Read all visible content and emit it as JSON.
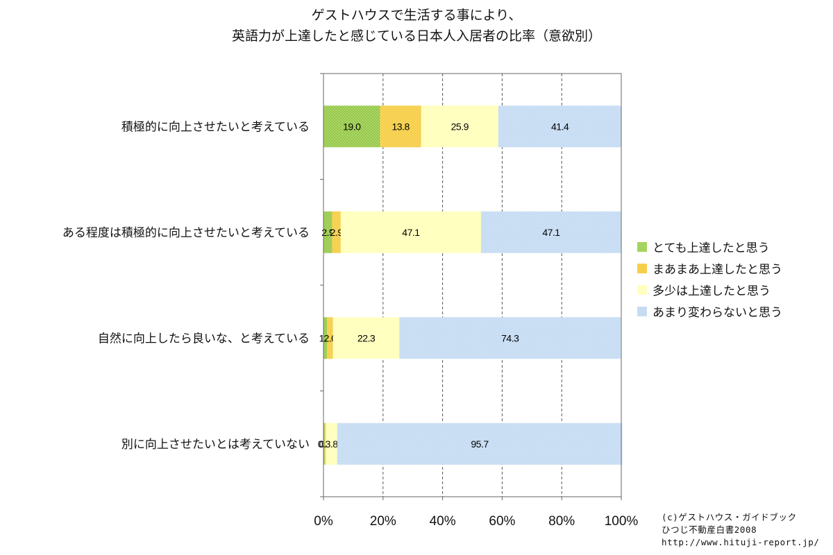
{
  "title": [
    "ゲストハウスで生活する事により、",
    "英語力が上達したと感じている日本人入居者の比率（意欲別）"
  ],
  "chart_data": {
    "type": "bar",
    "orientation": "horizontal",
    "stacking": "percent",
    "categories": [
      "積極的に向上させたいと考えている",
      "ある程度は積極的に向上させたいと考えている",
      "自然に向上したら良いな、と考えている",
      "別に向上させたいとは考えていない"
    ],
    "series": [
      {
        "name": "とても上達したと思う",
        "values": [
          19.0,
          2.9,
          1.2,
          0.4
        ],
        "labels": [
          "19.0",
          "2.9",
          "1.2",
          "0.4"
        ]
      },
      {
        "name": "まあまあ上達したと思う",
        "values": [
          13.8,
          2.9,
          2.0,
          0.4
        ],
        "labels": [
          "13.8",
          "2.9",
          "2.0",
          "0.4"
        ]
      },
      {
        "name": "多少は上達したと思う",
        "values": [
          25.9,
          47.1,
          22.3,
          3.8
        ],
        "labels": [
          "25.9",
          "47.1",
          "22.3",
          "3.8"
        ]
      },
      {
        "name": "あまり変わらないと思う",
        "values": [
          41.4,
          47.1,
          74.3,
          95.7
        ],
        "labels": [
          "41.4",
          "47.1",
          "74.3",
          "95.7"
        ]
      }
    ],
    "xlim": [
      0,
      100
    ],
    "xticks": [
      "0%",
      "20%",
      "40%",
      "60%",
      "80%",
      "100%"
    ],
    "grid": "vertical dashed",
    "legend_position": "right",
    "colors": [
      "#a6d35e",
      "#f6cf4a",
      "#ffffc0",
      "#c6dcf3"
    ]
  },
  "credit": [
    "(c)ゲストハウス・ガイドブック",
    "ひつじ不動産白書2008",
    "http://www.hituji-report.jp/"
  ]
}
